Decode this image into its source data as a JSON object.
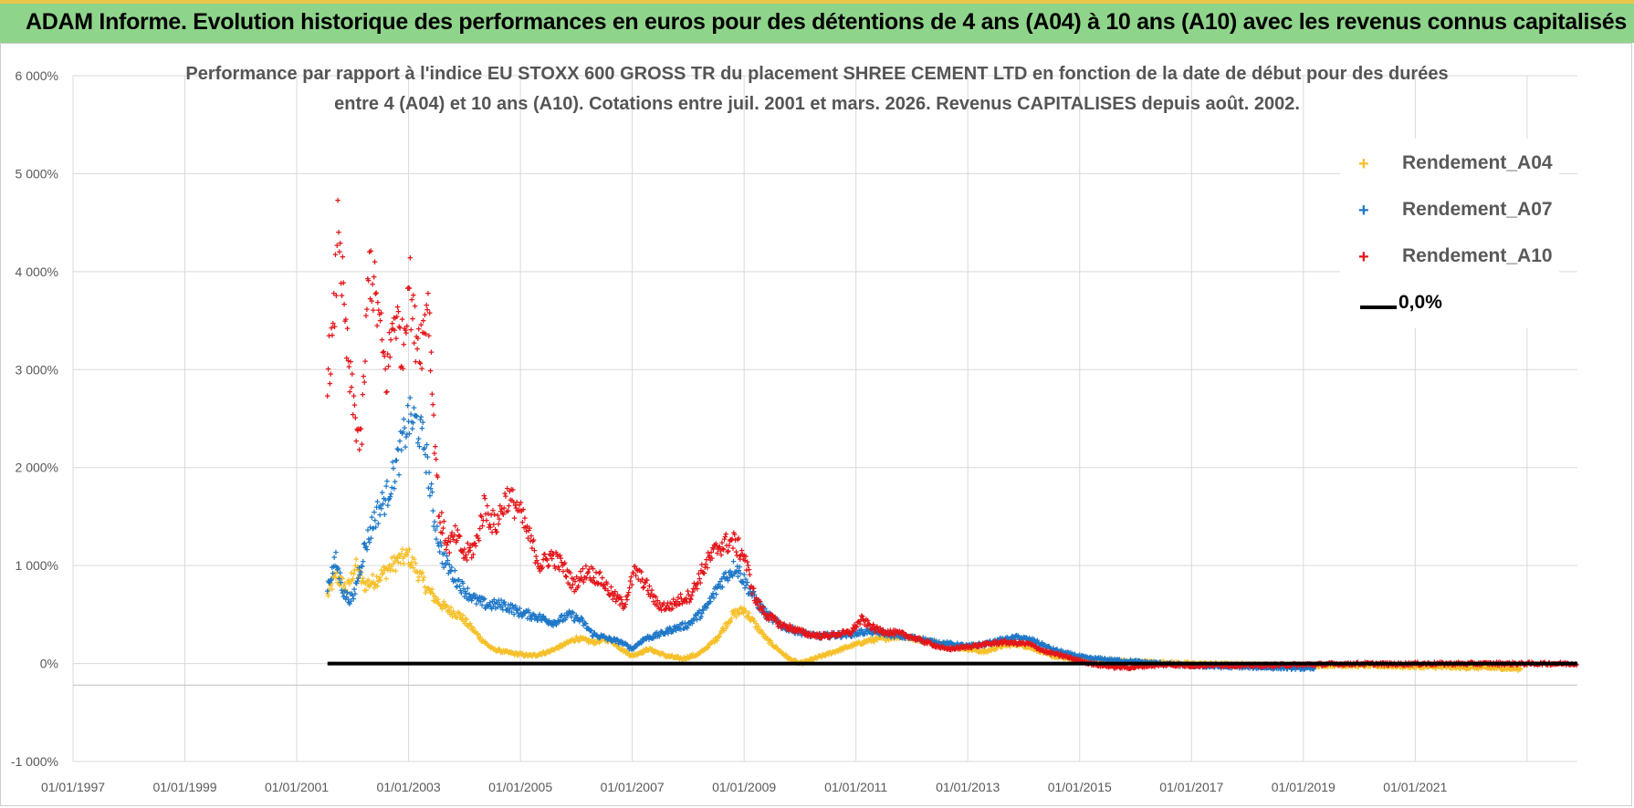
{
  "header": {
    "title": "ADAM Informe. Evolution historique des performances en euros pour des détentions de 4 ans (A04) à 10 ans (A10) avec les revenus connus capitalisés"
  },
  "chart_data": {
    "type": "scatter",
    "title_line1": "Performance par rapport à l'indice EU STOXX 600 GROSS TR  du placement SHREE CEMENT LTD en fonction de la date de début pour des durées",
    "title_line2": "entre 4 (A04) et 10 ans (A10).  Cotations entre juil. 2001 et mars. 2026. Revenus CAPITALISES  depuis août. 2002.",
    "xlabel": "",
    "ylabel": "",
    "xlim": [
      1997.0,
      2023.9
    ],
    "ylim": [
      -1000,
      6000
    ],
    "y_ticks": [
      {
        "value": 6000,
        "label": "6 000%"
      },
      {
        "value": 5000,
        "label": "5 000%"
      },
      {
        "value": 4000,
        "label": "4 000%"
      },
      {
        "value": 3000,
        "label": "3 000%"
      },
      {
        "value": 2000,
        "label": "2 000%"
      },
      {
        "value": 1000,
        "label": "1 000%"
      },
      {
        "value": 0,
        "label": "0%"
      },
      {
        "value": -1000,
        "label": "-1 000%"
      }
    ],
    "x_ticks": [
      {
        "value": 1997,
        "label": "01/01/1997"
      },
      {
        "value": 1999,
        "label": "01/01/1999"
      },
      {
        "value": 2001,
        "label": "01/01/2001"
      },
      {
        "value": 2003,
        "label": "01/01/2003"
      },
      {
        "value": 2005,
        "label": "01/01/2005"
      },
      {
        "value": 2007,
        "label": "01/01/2007"
      },
      {
        "value": 2009,
        "label": "01/01/2009"
      },
      {
        "value": 2011,
        "label": "01/01/2011"
      },
      {
        "value": 2013,
        "label": "01/01/2013"
      },
      {
        "value": 2015,
        "label": "01/01/2015"
      },
      {
        "value": 2017,
        "label": "01/01/2017"
      },
      {
        "value": 2019,
        "label": "01/01/2019"
      },
      {
        "value": 2021,
        "label": "01/01/2021"
      }
    ],
    "vertical_grid_years": [
      1997,
      1999,
      2001,
      2003,
      2005,
      2007,
      2009,
      2011,
      2013,
      2015,
      2017,
      2019,
      2021,
      2023
    ],
    "grid": true,
    "legend_position": "top-right",
    "series": [
      {
        "name": "Rendement_A04",
        "color": "#f5c02a",
        "marker": "+",
        "points": [
          [
            2001.55,
            700
          ],
          [
            2001.7,
            900
          ],
          [
            2001.9,
            750
          ],
          [
            2002.05,
            1000
          ],
          [
            2002.2,
            800
          ],
          [
            2002.4,
            850
          ],
          [
            2002.6,
            950
          ],
          [
            2002.8,
            1050
          ],
          [
            2003.0,
            1100
          ],
          [
            2003.2,
            900
          ],
          [
            2003.35,
            750
          ],
          [
            2003.5,
            650
          ],
          [
            2003.7,
            550
          ],
          [
            2003.9,
            500
          ],
          [
            2004.1,
            380
          ],
          [
            2004.3,
            250
          ],
          [
            2004.5,
            150
          ],
          [
            2004.8,
            110
          ],
          [
            2005.2,
            80
          ],
          [
            2005.5,
            120
          ],
          [
            2005.8,
            200
          ],
          [
            2006.0,
            260
          ],
          [
            2006.3,
            220
          ],
          [
            2006.6,
            250
          ],
          [
            2006.8,
            150
          ],
          [
            2007.0,
            80
          ],
          [
            2007.3,
            150
          ],
          [
            2007.6,
            80
          ],
          [
            2007.9,
            50
          ],
          [
            2008.2,
            100
          ],
          [
            2008.5,
            250
          ],
          [
            2008.8,
            500
          ],
          [
            2009.0,
            550
          ],
          [
            2009.2,
            400
          ],
          [
            2009.4,
            250
          ],
          [
            2009.6,
            150
          ],
          [
            2009.8,
            50
          ],
          [
            2010.0,
            0
          ],
          [
            2010.3,
            60
          ],
          [
            2010.6,
            120
          ],
          [
            2010.9,
            180
          ],
          [
            2011.2,
            230
          ],
          [
            2011.5,
            260
          ],
          [
            2011.8,
            280
          ],
          [
            2012.1,
            250
          ],
          [
            2012.4,
            220
          ],
          [
            2012.7,
            180
          ],
          [
            2013.0,
            150
          ],
          [
            2013.3,
            120
          ],
          [
            2013.6,
            180
          ],
          [
            2013.9,
            200
          ],
          [
            2014.2,
            150
          ],
          [
            2014.5,
            80
          ],
          [
            2014.8,
            50
          ],
          [
            2015.2,
            40
          ],
          [
            2015.6,
            30
          ],
          [
            2016.0,
            20
          ],
          [
            2016.5,
            10
          ],
          [
            2017.0,
            0
          ],
          [
            2017.5,
            -5
          ],
          [
            2018.0,
            -10
          ],
          [
            2018.5,
            -15
          ],
          [
            2019.0,
            -20
          ],
          [
            2019.5,
            -15
          ],
          [
            2020.0,
            -20
          ],
          [
            2020.5,
            -25
          ],
          [
            2021.0,
            -30
          ],
          [
            2021.5,
            -35
          ],
          [
            2022.0,
            -40
          ],
          [
            2022.5,
            -45
          ],
          [
            2022.9,
            -55
          ]
        ]
      },
      {
        "name": "Rendement_A07",
        "color": "#1f78c8",
        "marker": "+",
        "points": [
          [
            2001.55,
            800
          ],
          [
            2001.7,
            1050
          ],
          [
            2001.85,
            700
          ],
          [
            2002.0,
            650
          ],
          [
            2002.2,
            1150
          ],
          [
            2002.4,
            1500
          ],
          [
            2002.6,
            1700
          ],
          [
            2002.8,
            2050
          ],
          [
            2003.0,
            2500
          ],
          [
            2003.15,
            2450
          ],
          [
            2003.3,
            2200
          ],
          [
            2003.45,
            1500
          ],
          [
            2003.6,
            1100
          ],
          [
            2003.8,
            900
          ],
          [
            2004.0,
            750
          ],
          [
            2004.2,
            650
          ],
          [
            2004.4,
            600
          ],
          [
            2004.7,
            600
          ],
          [
            2005.0,
            520
          ],
          [
            2005.3,
            480
          ],
          [
            2005.6,
            420
          ],
          [
            2005.9,
            500
          ],
          [
            2006.1,
            430
          ],
          [
            2006.3,
            300
          ],
          [
            2006.6,
            250
          ],
          [
            2006.8,
            220
          ],
          [
            2007.0,
            150
          ],
          [
            2007.2,
            250
          ],
          [
            2007.5,
            300
          ],
          [
            2007.7,
            350
          ],
          [
            2008.0,
            400
          ],
          [
            2008.3,
            550
          ],
          [
            2008.6,
            850
          ],
          [
            2008.85,
            1000
          ],
          [
            2009.0,
            850
          ],
          [
            2009.2,
            650
          ],
          [
            2009.4,
            500
          ],
          [
            2009.7,
            380
          ],
          [
            2010.0,
            320
          ],
          [
            2010.3,
            280
          ],
          [
            2010.6,
            290
          ],
          [
            2010.9,
            300
          ],
          [
            2011.2,
            330
          ],
          [
            2011.5,
            310
          ],
          [
            2011.8,
            280
          ],
          [
            2012.1,
            260
          ],
          [
            2012.4,
            220
          ],
          [
            2012.7,
            200
          ],
          [
            2013.0,
            180
          ],
          [
            2013.3,
            200
          ],
          [
            2013.6,
            240
          ],
          [
            2013.9,
            270
          ],
          [
            2014.2,
            230
          ],
          [
            2014.5,
            150
          ],
          [
            2014.8,
            100
          ],
          [
            2015.1,
            60
          ],
          [
            2015.5,
            40
          ],
          [
            2016.0,
            20
          ],
          [
            2016.5,
            0
          ],
          [
            2017.0,
            -20
          ],
          [
            2017.5,
            -30
          ],
          [
            2018.0,
            -35
          ],
          [
            2018.5,
            -40
          ],
          [
            2018.9,
            -45
          ],
          [
            2019.2,
            -50
          ]
        ]
      },
      {
        "name": "Rendement_A10",
        "color": "#e3161a",
        "marker": "+",
        "points": [
          [
            2001.55,
            3000
          ],
          [
            2001.65,
            3300
          ],
          [
            2001.75,
            4600
          ],
          [
            2001.85,
            3500
          ],
          [
            2001.95,
            2900
          ],
          [
            2002.05,
            2500
          ],
          [
            2002.15,
            2200
          ],
          [
            2002.3,
            4100
          ],
          [
            2002.45,
            3600
          ],
          [
            2002.6,
            2900
          ],
          [
            2002.75,
            3600
          ],
          [
            2002.9,
            3200
          ],
          [
            2003.0,
            4000
          ],
          [
            2003.1,
            3400
          ],
          [
            2003.25,
            3300
          ],
          [
            2003.35,
            3800
          ],
          [
            2003.45,
            2500
          ],
          [
            2003.55,
            1500
          ],
          [
            2003.7,
            1200
          ],
          [
            2003.85,
            1300
          ],
          [
            2004.0,
            1100
          ],
          [
            2004.2,
            1200
          ],
          [
            2004.35,
            1600
          ],
          [
            2004.55,
            1400
          ],
          [
            2004.75,
            1700
          ],
          [
            2004.95,
            1600
          ],
          [
            2005.15,
            1300
          ],
          [
            2005.35,
            1000
          ],
          [
            2005.55,
            1100
          ],
          [
            2005.75,
            1000
          ],
          [
            2005.95,
            800
          ],
          [
            2006.2,
            950
          ],
          [
            2006.45,
            850
          ],
          [
            2006.65,
            700
          ],
          [
            2006.85,
            600
          ],
          [
            2007.05,
            950
          ],
          [
            2007.25,
            800
          ],
          [
            2007.45,
            600
          ],
          [
            2007.65,
            580
          ],
          [
            2007.85,
            650
          ],
          [
            2008.05,
            700
          ],
          [
            2008.3,
            1000
          ],
          [
            2008.55,
            1200
          ],
          [
            2008.8,
            1250
          ],
          [
            2009.0,
            1100
          ],
          [
            2009.2,
            650
          ],
          [
            2009.4,
            500
          ],
          [
            2009.65,
            400
          ],
          [
            2009.9,
            350
          ],
          [
            2010.15,
            300
          ],
          [
            2010.4,
            280
          ],
          [
            2010.65,
            300
          ],
          [
            2010.9,
            320
          ],
          [
            2011.1,
            450
          ],
          [
            2011.35,
            350
          ],
          [
            2011.6,
            320
          ],
          [
            2011.85,
            300
          ],
          [
            2012.1,
            250
          ],
          [
            2012.35,
            200
          ],
          [
            2012.6,
            150
          ],
          [
            2012.85,
            160
          ],
          [
            2013.1,
            180
          ],
          [
            2013.35,
            200
          ],
          [
            2013.6,
            220
          ],
          [
            2013.85,
            210
          ],
          [
            2014.1,
            200
          ],
          [
            2014.4,
            120
          ],
          [
            2014.7,
            80
          ],
          [
            2015.0,
            30
          ],
          [
            2015.3,
            -10
          ],
          [
            2015.6,
            -30
          ],
          [
            2015.9,
            -40
          ],
          [
            2016.2,
            -20
          ],
          [
            2016.6,
            -10
          ],
          [
            2017.0,
            -20
          ],
          [
            2017.5,
            -15
          ],
          [
            2018.0,
            -20
          ],
          [
            2018.5,
            -15
          ],
          [
            2019.0,
            -10
          ],
          [
            2019.5,
            -5
          ],
          [
            2020.0,
            0
          ],
          [
            2020.5,
            -5
          ],
          [
            2021.0,
            0
          ],
          [
            2021.5,
            0
          ],
          [
            2022.0,
            0
          ],
          [
            2022.5,
            0
          ],
          [
            2023.0,
            0
          ],
          [
            2023.5,
            0
          ],
          [
            2023.9,
            0
          ]
        ]
      }
    ],
    "reference_line": {
      "name": "0,0%",
      "value": 0,
      "from": 2001.55,
      "to": 2023.9,
      "color": "#000000"
    }
  }
}
